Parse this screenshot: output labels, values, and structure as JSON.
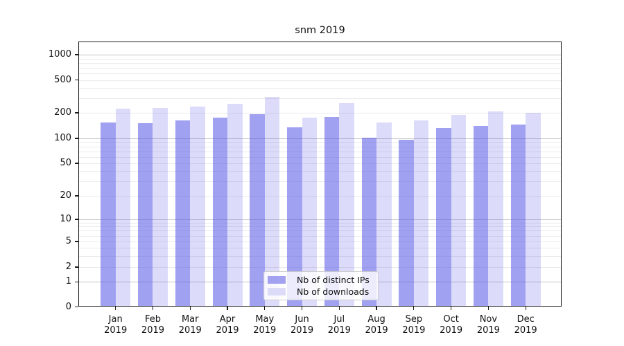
{
  "chart_data": {
    "type": "bar",
    "title": "snm 2019",
    "categories": [
      "Jan 2019",
      "Feb 2019",
      "Mar 2019",
      "Apr 2019",
      "May 2019",
      "Jun 2019",
      "Jul 2019",
      "Aug 2019",
      "Sep 2019",
      "Oct 2019",
      "Nov 2019",
      "Dec 2019"
    ],
    "series": [
      {
        "name": "Nb of distinct IPs",
        "key": "distinct-ips",
        "swatch_color": "#a2a2f0",
        "fill_rgba": "rgba(88,88,230,0.56)",
        "values": [
          154,
          152,
          164,
          175,
          193,
          134,
          180,
          102,
          96,
          132,
          141,
          145
        ]
      },
      {
        "name": "Nb of downloads",
        "key": "downloads",
        "swatch_color": "#dcdcf9",
        "fill_rgba": "rgba(88,88,230,0.21)",
        "values": [
          223,
          228,
          236,
          256,
          310,
          176,
          261,
          153,
          162,
          188,
          206,
          199
        ]
      }
    ],
    "y_ticks": [
      0,
      1,
      2,
      5,
      10,
      20,
      50,
      100,
      200,
      500,
      1000
    ],
    "y_scale": "symlog",
    "ylim": [
      0,
      1500
    ],
    "grid": "both",
    "legend_position": "lower center",
    "colors": {
      "spine": "#1a1a1a",
      "major_grid": "#c2c2c2",
      "minor_grid": "#eaeaea",
      "text": "#111111"
    }
  }
}
